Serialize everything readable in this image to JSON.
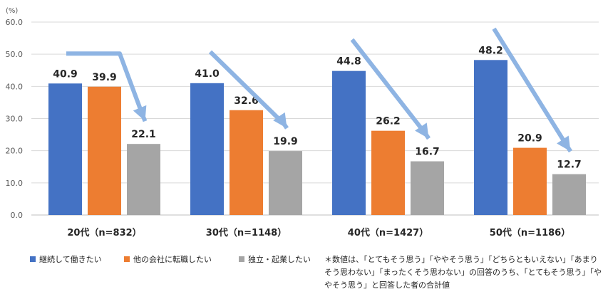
{
  "chart_data": {
    "type": "bar",
    "unit_label": "(%)",
    "categories": [
      "20代（n=832）",
      "30代（n=1148）",
      "40代（n=1427）",
      "50代（n=1186）"
    ],
    "series": [
      {
        "name": "継続して働きたい",
        "color": "#4472C4",
        "values": [
          40.9,
          41.0,
          44.8,
          48.2
        ]
      },
      {
        "name": "他の会社に転職したい",
        "color": "#ED7D31",
        "values": [
          39.9,
          32.6,
          26.2,
          20.9
        ]
      },
      {
        "name": "独立・起業したい",
        "color": "#A5A5A5",
        "values": [
          22.1,
          19.9,
          16.7,
          12.7
        ]
      }
    ],
    "ylim": [
      0,
      60
    ],
    "yticks": [
      "0.0",
      "10.0",
      "20.0",
      "30.0",
      "40.0",
      "50.0",
      "60.0"
    ],
    "grid": true,
    "arrow_color": "#8EB4E3",
    "annotation": "＊数値は、「とてもそう思う」「ややそう思う」「どちらともいえない」「あまりそう思わない」「まったくそう思わない」の回答のうち、「とてもそう思う」「ややそう思う」と回答した者の合計値"
  }
}
